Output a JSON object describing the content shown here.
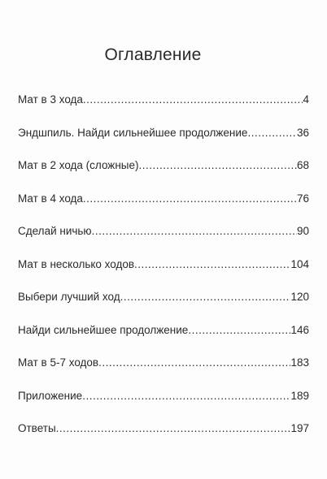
{
  "title": "Оглавление",
  "entries": [
    {
      "label": "Мат в 3 хода",
      "page": "4"
    },
    {
      "label": "Эндшпиль. Найди сильнейшее продолжение",
      "page": "36"
    },
    {
      "label": "Мат в 2 хода (сложные)",
      "page": "68"
    },
    {
      "label": "Мат в 4 хода",
      "page": "76"
    },
    {
      "label": "Сделай ничью",
      "page": "90"
    },
    {
      "label": "Мат в несколько ходов",
      "page": "104"
    },
    {
      "label": "Выбери лучший ход",
      "page": "120"
    },
    {
      "label": "Найди сильнейшее продолжение",
      "page": "146"
    },
    {
      "label": "Мат в 5-7 ходов",
      "page": "183"
    },
    {
      "label": "Приложение",
      "page": "189"
    },
    {
      "label": "Ответы",
      "page": "197"
    }
  ]
}
